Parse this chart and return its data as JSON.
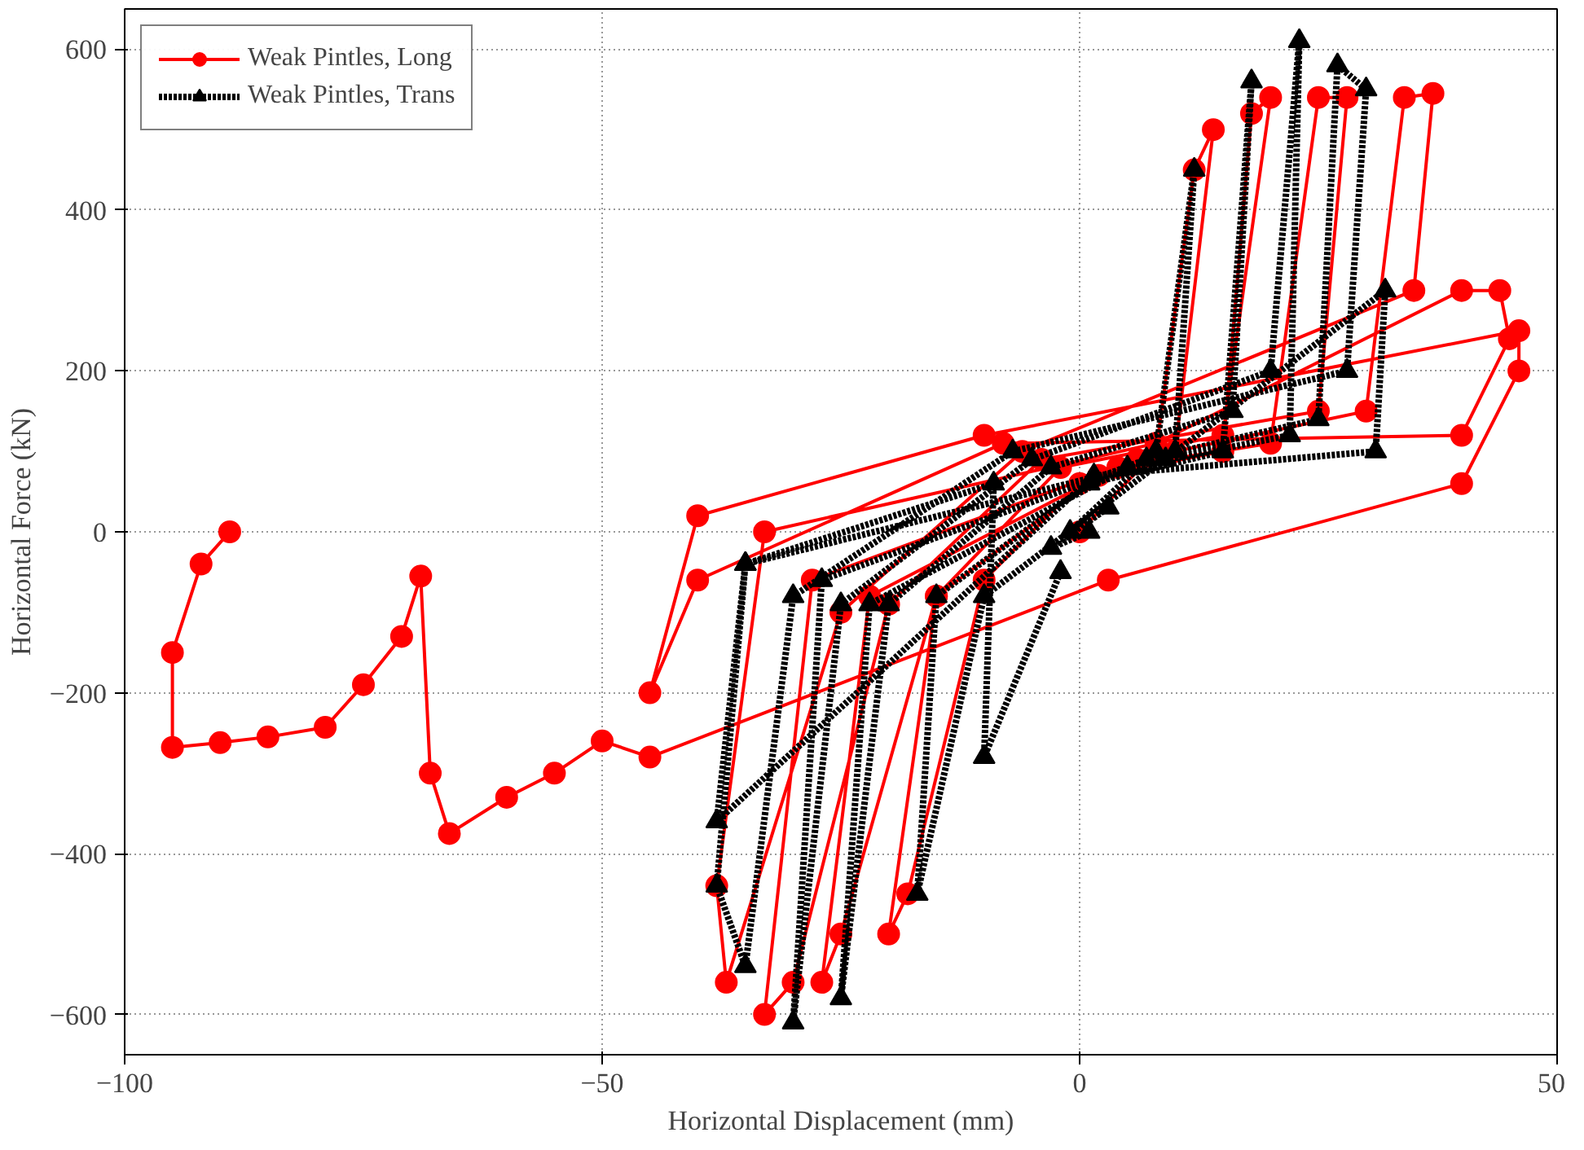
{
  "chart_data": {
    "type": "line",
    "xlabel": "Horizontal Displacement (mm)",
    "ylabel": "Horizontal Force (kN)",
    "xlim": [
      -100,
      50
    ],
    "ylim": [
      -650,
      650
    ],
    "xticks": [
      -100,
      -50,
      0,
      50
    ],
    "yticks": [
      -600,
      -400,
      -200,
      0,
      200,
      400,
      600
    ],
    "grid": true,
    "legend": "top left",
    "series": [
      {
        "name": "Weak Pintles, Long",
        "color": "#ff0000",
        "marker": "circle",
        "line_style": "solid",
        "x": [
          0,
          8,
          12,
          14,
          10,
          0,
          -10,
          -18,
          -20,
          -15,
          2,
          15,
          18,
          20,
          15,
          -2,
          -15,
          -25,
          -27,
          -22,
          4,
          20,
          25,
          28,
          25,
          -4,
          -20,
          -30,
          -33,
          -28,
          6,
          30,
          34,
          37,
          35,
          -6,
          -25,
          -37,
          -38,
          -33,
          8,
          40,
          44,
          45,
          40,
          -8,
          -40,
          -45,
          -40,
          -10,
          46,
          46,
          40,
          3,
          -45,
          -50,
          -55,
          -60,
          -66,
          -68,
          -69,
          -71,
          -75,
          -79,
          -85,
          -90,
          -95,
          -95,
          -92,
          -89
        ],
        "values": [
          0,
          100,
          450,
          500,
          100,
          60,
          -60,
          -450,
          -500,
          -80,
          70,
          100,
          520,
          540,
          120,
          80,
          -80,
          -500,
          -560,
          -80,
          80,
          110,
          540,
          540,
          150,
          90,
          -90,
          -560,
          -600,
          -60,
          90,
          150,
          540,
          545,
          300,
          100,
          -100,
          -560,
          -440,
          0,
          110,
          300,
          300,
          240,
          120,
          110,
          -60,
          -200,
          20,
          120,
          250,
          200,
          60,
          -60,
          -280,
          -260,
          -300,
          -330,
          -375,
          -300,
          -55,
          -130,
          -190,
          -243,
          -255,
          -262,
          -268,
          -150,
          -40,
          0
        ]
      },
      {
        "name": "Weak Pintles, Trans",
        "color": "#000000",
        "marker": "triangle",
        "line_style": "dotted",
        "x": [
          1,
          -3,
          3,
          -1,
          8,
          12,
          10,
          -10,
          -17,
          -15,
          1,
          15,
          18,
          16,
          -3,
          -20,
          -25,
          -22,
          5,
          22,
          23,
          20,
          -5,
          -25,
          -30,
          -27,
          7,
          25,
          27,
          30,
          28,
          -7,
          -30,
          -35,
          -38,
          -35,
          9,
          32,
          31,
          1.5,
          -38,
          -35,
          -9,
          -10,
          -2
        ],
        "values": [
          0,
          -20,
          30,
          0,
          100,
          450,
          100,
          -80,
          -450,
          -80,
          60,
          100,
          560,
          150,
          80,
          -90,
          -580,
          -90,
          80,
          120,
          610,
          200,
          90,
          -90,
          -610,
          -60,
          90,
          140,
          580,
          550,
          200,
          100,
          -80,
          -540,
          -440,
          -40,
          90,
          300,
          100,
          70,
          -360,
          -40,
          60,
          -280,
          -50
        ]
      }
    ]
  }
}
